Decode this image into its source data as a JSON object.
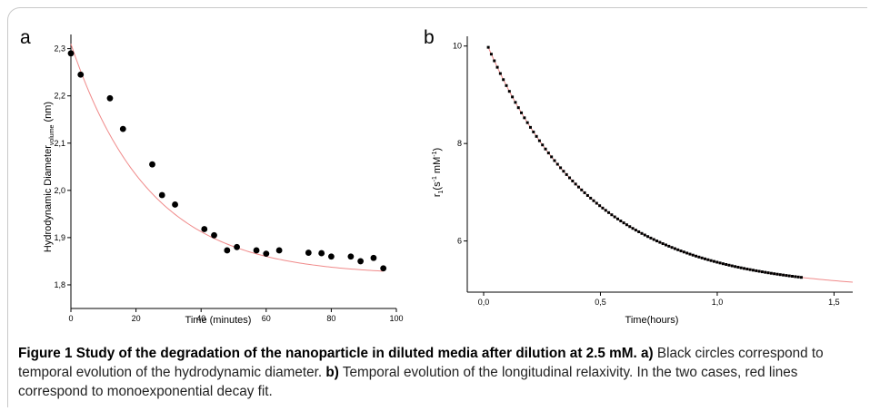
{
  "figure": {
    "caption_title": "Figure 1 Study of the degradation of the nanoparticle in diluted media after dilution at 2.5 mM. a)",
    "caption_text_1": " Black circles correspond to temporal evolution of the hydrodynamic diameter. ",
    "caption_bold_b": "b)",
    "caption_text_2": " Temporal evolution of the longitudinal relaxivity. In the two cases, red lines correspond to monoexponential decay fit."
  },
  "colors": {
    "points": "#000000",
    "fit_line": "#f08a8a",
    "axis": "#000000"
  },
  "chart_data": [
    {
      "panel_label": "a",
      "type": "scatter",
      "title": "",
      "xlabel": "Time (minutes)",
      "ylabel_main": "Hydrodynamic Diameter",
      "ylabel_sub": "volume",
      "ylabel_unit": " (nm)",
      "xlim": [
        0,
        100
      ],
      "ylim": [
        1.75,
        2.33
      ],
      "xticks": [
        0,
        20,
        40,
        60,
        80,
        100
      ],
      "xtick_labels": [
        "0",
        "20",
        "40",
        "60",
        "80",
        "100"
      ],
      "yticks": [
        1.8,
        1.9,
        2.0,
        2.1,
        2.2,
        2.3
      ],
      "ytick_labels": [
        "1,8",
        "1,9",
        "2,0",
        "2,1",
        "2,2",
        "2,3"
      ],
      "series": [
        {
          "kind": "points",
          "x": [
            0,
            3,
            12,
            16,
            25,
            28,
            32,
            41,
            44,
            48,
            51,
            57,
            60,
            64,
            73,
            77,
            80,
            86,
            89,
            93,
            96
          ],
          "y": [
            2.29,
            2.245,
            2.195,
            2.13,
            2.055,
            1.99,
            1.97,
            1.918,
            1.905,
            1.873,
            1.88,
            1.873,
            1.866,
            1.873,
            1.868,
            1.867,
            1.86,
            1.86,
            1.85,
            1.857,
            1.835
          ]
        },
        {
          "kind": "fit",
          "model": "y = y0 + A*exp(-x/t)",
          "y0": 1.82,
          "A": 0.49,
          "t": 24,
          "xrange": [
            0,
            96
          ]
        }
      ]
    },
    {
      "panel_label": "b",
      "type": "scatter",
      "title": "",
      "xlabel": "Time(hours)",
      "ylabel_main": "r",
      "ylabel_sub": "1",
      "ylabel_unit": "(s  mM  )",
      "ylabel_sup1": "-1",
      "ylabel_sup2": "-1",
      "xlim": [
        -0.07,
        1.58
      ],
      "ylim": [
        4.95,
        10.2
      ],
      "xticks": [
        0.0,
        0.5,
        1.0,
        1.5
      ],
      "xtick_labels": [
        "0,0",
        "0,5",
        "1,0",
        "1,5"
      ],
      "yticks": [
        6,
        8,
        10
      ],
      "ytick_labels": [
        "6",
        "8",
        "10"
      ],
      "series": [
        {
          "kind": "points",
          "model": "y = y0 + A*exp(-x/t)",
          "y0": 5.0,
          "A": 5.2,
          "t": 0.45,
          "xrange": [
            0.02,
            1.36
          ],
          "count": 105
        },
        {
          "kind": "fit",
          "model": "y = y0 + A*exp(-x/t)",
          "y0": 5.0,
          "A": 5.2,
          "t": 0.45,
          "xrange": [
            0.02,
            1.58
          ]
        }
      ]
    }
  ]
}
